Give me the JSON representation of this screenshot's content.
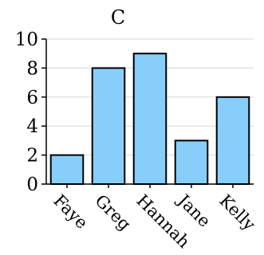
{
  "chart_data": {
    "type": "bar",
    "title": "C",
    "categories": [
      "Faye",
      "Greg",
      "Hannah",
      "Jane",
      "Kelly"
    ],
    "values": [
      2,
      8,
      9,
      3,
      6
    ],
    "ylim": [
      0,
      10
    ],
    "yticks": [
      0,
      2,
      4,
      6,
      8,
      10
    ],
    "grid": true,
    "bar_color": "#87cefa"
  }
}
